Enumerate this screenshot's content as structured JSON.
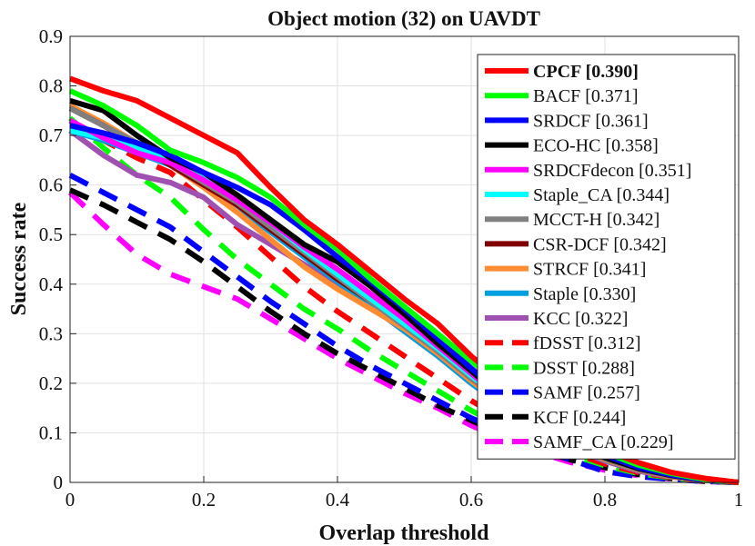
{
  "chart_data": {
    "type": "line",
    "title": "Object motion (32) on UAVDT",
    "xlabel": "Overlap threshold",
    "ylabel": "Success rate",
    "xlim": [
      0,
      1
    ],
    "ylim": [
      0,
      0.9
    ],
    "x_ticks": [
      "0",
      "0.2",
      "0.4",
      "0.6",
      "0.8",
      "1"
    ],
    "y_ticks": [
      "0",
      "0.1",
      "0.2",
      "0.3",
      "0.4",
      "0.5",
      "0.6",
      "0.7",
      "0.8",
      "0.9"
    ],
    "grid": true,
    "legend_position": "top-right",
    "x": [
      0,
      0.05,
      0.1,
      0.15,
      0.2,
      0.25,
      0.3,
      0.35,
      0.4,
      0.45,
      0.5,
      0.55,
      0.6,
      0.65,
      0.7,
      0.75,
      0.8,
      0.85,
      0.9,
      0.95,
      1.0
    ],
    "series": [
      {
        "name": "CPCF [0.390]",
        "color": "#ff0000",
        "dash": "solid",
        "bold": true,
        "values": [
          0.815,
          0.79,
          0.77,
          0.735,
          0.7,
          0.665,
          0.595,
          0.53,
          0.48,
          0.425,
          0.37,
          0.32,
          0.255,
          0.2,
          0.15,
          0.1,
          0.065,
          0.04,
          0.02,
          0.008,
          0.0
        ]
      },
      {
        "name": "BACF [0.371]",
        "color": "#00ff00",
        "dash": "solid",
        "bold": false,
        "values": [
          0.79,
          0.76,
          0.72,
          0.67,
          0.645,
          0.615,
          0.575,
          0.52,
          0.47,
          0.41,
          0.355,
          0.3,
          0.245,
          0.19,
          0.14,
          0.095,
          0.06,
          0.035,
          0.018,
          0.006,
          0.0
        ]
      },
      {
        "name": "SRDCF [0.361]",
        "color": "#0000ff",
        "dash": "solid",
        "bold": false,
        "values": [
          0.72,
          0.705,
          0.685,
          0.66,
          0.625,
          0.595,
          0.56,
          0.51,
          0.455,
          0.405,
          0.35,
          0.29,
          0.23,
          0.175,
          0.125,
          0.085,
          0.055,
          0.03,
          0.015,
          0.005,
          0.0
        ]
      },
      {
        "name": "ECO-HC [0.358]",
        "color": "#000000",
        "dash": "solid",
        "bold": false,
        "values": [
          0.77,
          0.75,
          0.7,
          0.655,
          0.625,
          0.58,
          0.53,
          0.48,
          0.445,
          0.395,
          0.34,
          0.28,
          0.225,
          0.17,
          0.12,
          0.08,
          0.05,
          0.028,
          0.014,
          0.005,
          0.0
        ]
      },
      {
        "name": "SRDCFdecon [0.351]",
        "color": "#ff00ff",
        "dash": "solid",
        "bold": false,
        "values": [
          0.73,
          0.695,
          0.665,
          0.645,
          0.61,
          0.57,
          0.525,
          0.475,
          0.43,
          0.38,
          0.33,
          0.275,
          0.22,
          0.165,
          0.12,
          0.08,
          0.05,
          0.028,
          0.014,
          0.005,
          0.0
        ]
      },
      {
        "name": "Staple_CA [0.344]",
        "color": "#00ffff",
        "dash": "solid",
        "bold": false,
        "values": [
          0.71,
          0.695,
          0.675,
          0.655,
          0.615,
          0.575,
          0.525,
          0.47,
          0.42,
          0.37,
          0.32,
          0.27,
          0.215,
          0.165,
          0.12,
          0.08,
          0.05,
          0.028,
          0.014,
          0.005,
          0.0
        ]
      },
      {
        "name": "MCCT-H [0.342]",
        "color": "#808080",
        "dash": "solid",
        "bold": false,
        "values": [
          0.755,
          0.72,
          0.685,
          0.645,
          0.605,
          0.565,
          0.515,
          0.465,
          0.415,
          0.365,
          0.315,
          0.265,
          0.21,
          0.16,
          0.115,
          0.078,
          0.048,
          0.026,
          0.013,
          0.004,
          0.0
        ]
      },
      {
        "name": "CSR-DCF [0.342]",
        "color": "#800000",
        "dash": "solid",
        "bold": false,
        "values": [
          0.755,
          0.72,
          0.68,
          0.64,
          0.6,
          0.56,
          0.51,
          0.46,
          0.41,
          0.365,
          0.32,
          0.265,
          0.21,
          0.16,
          0.115,
          0.078,
          0.048,
          0.026,
          0.013,
          0.004,
          0.0
        ]
      },
      {
        "name": "STRCF [0.341]",
        "color": "#ff8c33",
        "dash": "solid",
        "bold": false,
        "values": [
          0.76,
          0.725,
          0.685,
          0.64,
          0.595,
          0.545,
          0.49,
          0.435,
          0.39,
          0.35,
          0.31,
          0.26,
          0.205,
          0.155,
          0.11,
          0.075,
          0.046,
          0.025,
          0.012,
          0.004,
          0.0
        ]
      },
      {
        "name": "Staple [0.330]",
        "color": "#00a0e0",
        "dash": "solid",
        "bold": false,
        "values": [
          0.71,
          0.69,
          0.665,
          0.64,
          0.6,
          0.555,
          0.505,
          0.455,
          0.405,
          0.355,
          0.305,
          0.255,
          0.2,
          0.15,
          0.11,
          0.075,
          0.045,
          0.025,
          0.012,
          0.004,
          0.0
        ]
      },
      {
        "name": "KCC [0.322]",
        "color": "#a050b0",
        "dash": "solid",
        "bold": false,
        "values": [
          0.71,
          0.66,
          0.62,
          0.605,
          0.575,
          0.52,
          0.48,
          0.44,
          0.4,
          0.355,
          0.305,
          0.255,
          0.2,
          0.15,
          0.105,
          0.07,
          0.043,
          0.023,
          0.011,
          0.004,
          0.0
        ]
      },
      {
        "name": "fDSST [0.312]",
        "color": "#ff0000",
        "dash": "dashed",
        "bold": false,
        "values": [
          0.73,
          0.69,
          0.655,
          0.625,
          0.57,
          0.515,
          0.455,
          0.395,
          0.345,
          0.3,
          0.255,
          0.21,
          0.165,
          0.125,
          0.09,
          0.06,
          0.037,
          0.02,
          0.01,
          0.003,
          0.0
        ]
      },
      {
        "name": "DSST [0.288]",
        "color": "#00ff00",
        "dash": "dashed",
        "bold": false,
        "values": [
          0.735,
          0.675,
          0.62,
          0.575,
          0.51,
          0.45,
          0.4,
          0.35,
          0.31,
          0.265,
          0.225,
          0.185,
          0.145,
          0.11,
          0.08,
          0.055,
          0.034,
          0.018,
          0.009,
          0.003,
          0.0
        ]
      },
      {
        "name": "SAMF [0.257]",
        "color": "#0000ff",
        "dash": "dashed",
        "bold": false,
        "values": [
          0.62,
          0.585,
          0.55,
          0.515,
          0.465,
          0.415,
          0.365,
          0.32,
          0.275,
          0.235,
          0.2,
          0.165,
          0.13,
          0.1,
          0.07,
          0.045,
          0.022,
          0.012,
          0.006,
          0.002,
          0.0
        ]
      },
      {
        "name": "KCF [0.244]",
        "color": "#000000",
        "dash": "dashed",
        "bold": false,
        "values": [
          0.59,
          0.56,
          0.525,
          0.49,
          0.445,
          0.395,
          0.345,
          0.3,
          0.26,
          0.225,
          0.19,
          0.155,
          0.125,
          0.095,
          0.065,
          0.045,
          0.03,
          0.016,
          0.008,
          0.002,
          0.0
        ]
      },
      {
        "name": "SAMF_CA [0.229]",
        "color": "#ff00ff",
        "dash": "dashed",
        "bold": false,
        "values": [
          0.585,
          0.52,
          0.46,
          0.42,
          0.395,
          0.37,
          0.33,
          0.29,
          0.25,
          0.215,
          0.18,
          0.15,
          0.115,
          0.085,
          0.06,
          0.04,
          0.025,
          0.014,
          0.007,
          0.002,
          0.0
        ]
      }
    ]
  }
}
